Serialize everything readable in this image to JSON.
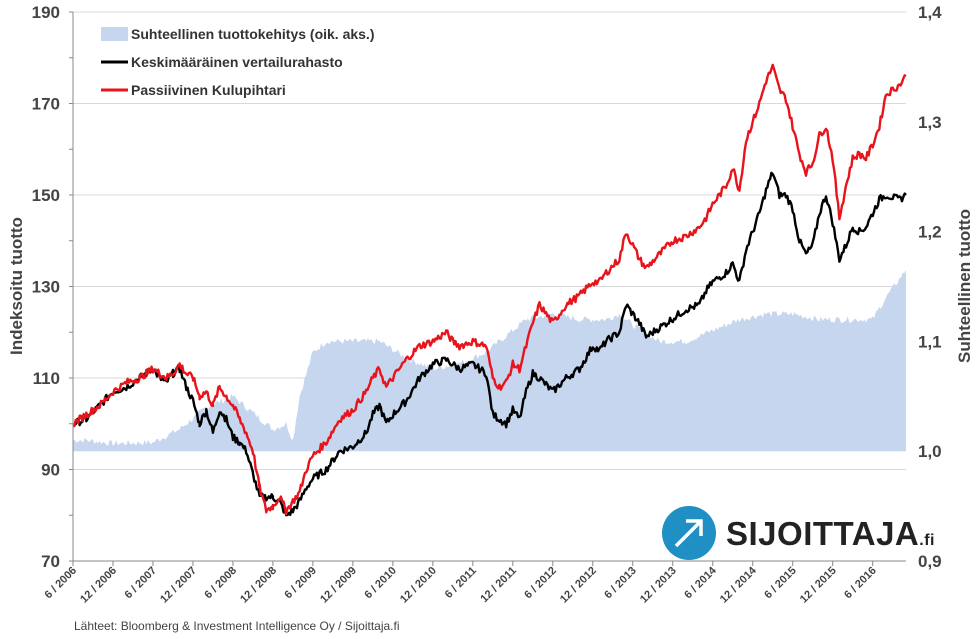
{
  "colors": {
    "relative": "#c5d6ee",
    "average": "#000000",
    "passive": "#e8141b",
    "grid": "#d9d9d9",
    "text": "#444444"
  },
  "source_text": "Lähteet: Bloomberg & Investment Intelligence Oy / Sijoittaja.fi",
  "logo": {
    "name": "SIJOITTAJA",
    "suffix": ".fi"
  },
  "chart_data": {
    "type": "line",
    "title": "",
    "xlabel": "",
    "ylabel": "Indeksoitu tuotto",
    "y2label": "Suhteellinen tuotto",
    "ylim": [
      70,
      190
    ],
    "yticks": [
      "70",
      "90",
      "110",
      "130",
      "150",
      "170",
      "190"
    ],
    "y2lim": [
      0.9,
      1.4
    ],
    "y2ticks": [
      "0,9",
      "1,0",
      "1,1",
      "1,2",
      "1,3",
      "1,4"
    ],
    "x_range_months": [
      0,
      125
    ],
    "xticks": [
      {
        "label": "6 / 2006",
        "m": 0
      },
      {
        "label": "12 / 2006",
        "m": 6
      },
      {
        "label": "6 / 2007",
        "m": 12
      },
      {
        "label": "12 / 2007",
        "m": 18
      },
      {
        "label": "6 / 2008",
        "m": 24
      },
      {
        "label": "12 / 2008",
        "m": 30
      },
      {
        "label": "6 / 2009",
        "m": 36
      },
      {
        "label": "12 / 2009",
        "m": 42
      },
      {
        "label": "6 / 2010",
        "m": 48
      },
      {
        "label": "12 / 2010",
        "m": 54
      },
      {
        "label": "6 / 2011",
        "m": 60
      },
      {
        "label": "12 / 2011",
        "m": 66
      },
      {
        "label": "6 / 2012",
        "m": 72
      },
      {
        "label": "12 / 2012",
        "m": 78
      },
      {
        "label": "6 / 2013",
        "m": 84
      },
      {
        "label": "12 / 2013",
        "m": 90
      },
      {
        "label": "6 / 2014",
        "m": 96
      },
      {
        "label": "12 / 2014",
        "m": 102
      },
      {
        "label": "6 / 2015",
        "m": 108
      },
      {
        "label": "12 / 2015",
        "m": 114
      },
      {
        "label": "6 / 2016",
        "m": 120
      }
    ],
    "legend": "top-left",
    "series": [
      {
        "name": "Suhteellinen tuottokehitys (oik. aks.)",
        "kind": "area",
        "axis": "right",
        "points": [
          [
            0,
            1.01
          ],
          [
            2,
            1.01
          ],
          [
            6,
            1.007
          ],
          [
            12,
            1.008
          ],
          [
            16,
            1.02
          ],
          [
            20,
            1.04
          ],
          [
            24,
            1.05
          ],
          [
            26,
            1.04
          ],
          [
            28,
            1.03
          ],
          [
            30,
            1.02
          ],
          [
            32,
            1.025
          ],
          [
            33,
            1.01
          ],
          [
            34,
            1.05
          ],
          [
            36,
            1.09
          ],
          [
            38,
            1.1
          ],
          [
            42,
            1.1
          ],
          [
            46,
            1.1
          ],
          [
            50,
            1.085
          ],
          [
            54,
            1.075
          ],
          [
            58,
            1.08
          ],
          [
            62,
            1.09
          ],
          [
            64,
            1.1
          ],
          [
            66,
            1.11
          ],
          [
            68,
            1.12
          ],
          [
            72,
            1.125
          ],
          [
            76,
            1.12
          ],
          [
            80,
            1.12
          ],
          [
            82,
            1.125
          ],
          [
            84,
            1.115
          ],
          [
            88,
            1.1
          ],
          [
            92,
            1.1
          ],
          [
            96,
            1.11
          ],
          [
            100,
            1.12
          ],
          [
            104,
            1.125
          ],
          [
            108,
            1.125
          ],
          [
            112,
            1.12
          ],
          [
            116,
            1.12
          ],
          [
            120,
            1.12
          ],
          [
            122,
            1.14
          ],
          [
            125,
            1.165
          ]
        ]
      },
      {
        "name": "Keskimääräinen vertailurahasto",
        "kind": "line",
        "axis": "left",
        "points": [
          [
            0,
            100
          ],
          [
            2,
            101
          ],
          [
            4,
            104
          ],
          [
            6,
            107
          ],
          [
            8,
            108
          ],
          [
            10,
            110
          ],
          [
            12,
            112
          ],
          [
            13,
            110
          ],
          [
            14,
            109
          ],
          [
            15,
            111
          ],
          [
            16,
            112
          ],
          [
            17,
            108
          ],
          [
            18,
            105
          ],
          [
            19,
            100
          ],
          [
            20,
            103
          ],
          [
            21,
            98
          ],
          [
            22,
            103
          ],
          [
            23,
            101
          ],
          [
            24,
            97
          ],
          [
            25,
            96
          ],
          [
            26,
            94
          ],
          [
            27,
            89
          ],
          [
            28,
            84
          ],
          [
            30,
            84
          ],
          [
            31,
            83
          ],
          [
            32,
            80
          ],
          [
            33,
            81
          ],
          [
            34,
            83
          ],
          [
            35,
            86
          ],
          [
            36,
            88
          ],
          [
            38,
            90
          ],
          [
            40,
            94
          ],
          [
            42,
            95
          ],
          [
            44,
            98
          ],
          [
            45,
            102
          ],
          [
            46,
            104
          ],
          [
            47,
            100
          ],
          [
            48,
            102
          ],
          [
            50,
            105
          ],
          [
            52,
            110
          ],
          [
            54,
            113
          ],
          [
            56,
            114
          ],
          [
            57,
            113
          ],
          [
            58,
            112
          ],
          [
            60,
            113
          ],
          [
            62,
            111
          ],
          [
            63,
            102
          ],
          [
            64,
            101
          ],
          [
            65,
            100
          ],
          [
            66,
            103
          ],
          [
            67,
            101
          ],
          [
            68,
            107
          ],
          [
            69,
            111
          ],
          [
            70,
            110
          ],
          [
            72,
            107
          ],
          [
            74,
            110
          ],
          [
            76,
            112
          ],
          [
            78,
            117
          ],
          [
            79,
            116
          ],
          [
            80,
            118
          ],
          [
            82,
            120
          ],
          [
            83,
            126
          ],
          [
            84,
            124
          ],
          [
            85,
            122
          ],
          [
            86,
            119
          ],
          [
            88,
            121
          ],
          [
            90,
            123
          ],
          [
            92,
            125
          ],
          [
            94,
            126
          ],
          [
            95,
            129
          ],
          [
            96,
            131
          ],
          [
            97,
            132
          ],
          [
            98,
            133
          ],
          [
            99,
            135
          ],
          [
            100,
            131
          ],
          [
            101,
            138
          ],
          [
            102,
            142
          ],
          [
            103,
            146
          ],
          [
            104,
            151
          ],
          [
            105,
            155
          ],
          [
            106,
            150
          ],
          [
            107,
            150
          ],
          [
            108,
            147
          ],
          [
            109,
            140
          ],
          [
            110,
            137
          ],
          [
            111,
            139
          ],
          [
            112,
            146
          ],
          [
            113,
            150
          ],
          [
            114,
            144
          ],
          [
            115,
            136
          ],
          [
            116,
            139
          ],
          [
            117,
            143
          ],
          [
            118,
            142
          ],
          [
            119,
            143
          ],
          [
            120,
            146
          ],
          [
            121,
            149
          ],
          [
            122,
            150
          ],
          [
            124,
            149
          ],
          [
            125,
            150
          ]
        ]
      },
      {
        "name": "Passiivinen Kulupihtari",
        "kind": "line",
        "axis": "left",
        "points": [
          [
            0,
            100
          ],
          [
            2,
            102
          ],
          [
            4,
            104
          ],
          [
            6,
            107
          ],
          [
            8,
            109
          ],
          [
            10,
            110
          ],
          [
            12,
            112
          ],
          [
            13,
            111
          ],
          [
            14,
            110
          ],
          [
            15,
            111
          ],
          [
            16,
            113
          ],
          [
            17,
            111
          ],
          [
            18,
            110
          ],
          [
            19,
            106
          ],
          [
            20,
            107
          ],
          [
            21,
            104
          ],
          [
            22,
            108
          ],
          [
            23,
            106
          ],
          [
            24,
            104
          ],
          [
            25,
            101
          ],
          [
            26,
            98
          ],
          [
            27,
            94
          ],
          [
            28,
            86
          ],
          [
            29,
            81
          ],
          [
            30,
            82
          ],
          [
            31,
            84
          ],
          [
            32,
            81
          ],
          [
            33,
            83
          ],
          [
            34,
            85
          ],
          [
            35,
            90
          ],
          [
            36,
            93
          ],
          [
            38,
            96
          ],
          [
            40,
            101
          ],
          [
            42,
            103
          ],
          [
            44,
            107
          ],
          [
            45,
            110
          ],
          [
            46,
            112
          ],
          [
            47,
            108
          ],
          [
            48,
            110
          ],
          [
            50,
            114
          ],
          [
            52,
            117
          ],
          [
            54,
            118
          ],
          [
            56,
            120
          ],
          [
            57,
            118
          ],
          [
            58,
            117
          ],
          [
            60,
            118
          ],
          [
            62,
            117
          ],
          [
            63,
            110
          ],
          [
            64,
            108
          ],
          [
            65,
            109
          ],
          [
            66,
            113
          ],
          [
            67,
            112
          ],
          [
            68,
            117
          ],
          [
            69,
            122
          ],
          [
            70,
            126
          ],
          [
            72,
            122
          ],
          [
            74,
            126
          ],
          [
            76,
            128
          ],
          [
            78,
            131
          ],
          [
            79,
            131
          ],
          [
            80,
            133
          ],
          [
            82,
            136
          ],
          [
            83,
            142
          ],
          [
            84,
            139
          ],
          [
            85,
            136
          ],
          [
            86,
            134
          ],
          [
            88,
            137
          ],
          [
            90,
            140
          ],
          [
            92,
            141
          ],
          [
            94,
            143
          ],
          [
            95,
            145
          ],
          [
            96,
            148
          ],
          [
            97,
            150
          ],
          [
            98,
            152
          ],
          [
            99,
            156
          ],
          [
            100,
            151
          ],
          [
            101,
            162
          ],
          [
            102,
            166
          ],
          [
            103,
            170
          ],
          [
            104,
            175
          ],
          [
            105,
            178
          ],
          [
            106,
            173
          ],
          [
            107,
            171
          ],
          [
            108,
            165
          ],
          [
            109,
            159
          ],
          [
            110,
            155
          ],
          [
            111,
            157
          ],
          [
            112,
            163
          ],
          [
            113,
            165
          ],
          [
            114,
            158
          ],
          [
            115,
            145
          ],
          [
            116,
            152
          ],
          [
            117,
            158
          ],
          [
            118,
            159
          ],
          [
            119,
            158
          ],
          [
            120,
            161
          ],
          [
            121,
            165
          ],
          [
            122,
            172
          ],
          [
            124,
            174
          ],
          [
            125,
            176
          ]
        ]
      }
    ]
  }
}
